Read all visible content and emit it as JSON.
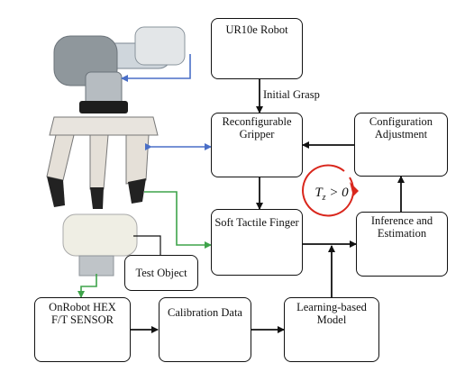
{
  "nodes": {
    "ur10e_robot": "UR10e Robot",
    "reconfigurable_gripper": "Reconfigurable\nGripper",
    "configuration_adjustment": "Configuration\nAdjustment",
    "soft_tactile_finger": "Soft Tactile Finger",
    "inference_estimation": "Inference and\nEstimation",
    "test_object": "Test Object",
    "onrobot_sensor": "OnRobot HEX\nF/T SENSOR",
    "calibration_data": "Calibration Data",
    "learning_model": "Learning-based\nModel"
  },
  "edges": {
    "initial_grasp": "Initial Grasp"
  },
  "annotation": {
    "torque_condition": "T_z > 0"
  },
  "colors": {
    "blue_link": "#4a6fc7",
    "green_link": "#3ea34a",
    "red_arrow": "#d9261c"
  }
}
